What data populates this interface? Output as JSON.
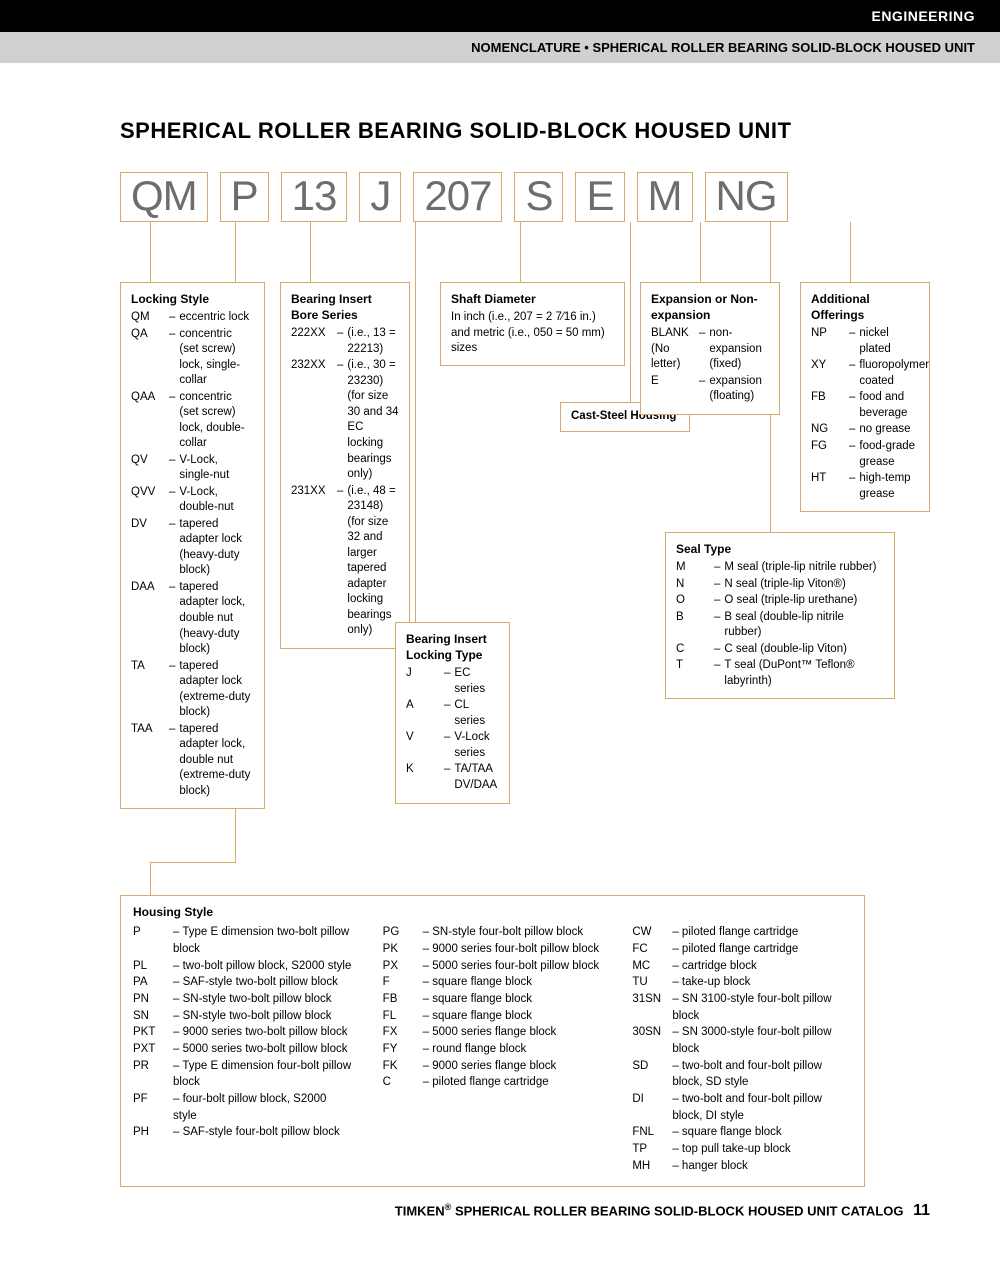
{
  "header": {
    "black": "ENGINEERING",
    "gray": "NOMENCLATURE • SPHERICAL ROLLER BEARING SOLID-BLOCK HOUSED UNIT"
  },
  "title": "SPHERICAL ROLLER BEARING SOLID-BLOCK HOUSED UNIT",
  "codes": [
    "QM",
    "P",
    "13",
    "J",
    "207",
    "S",
    "E",
    "M",
    "NG"
  ],
  "lockingStyle": {
    "title": "Locking Style",
    "items": [
      {
        "c": "QM",
        "d": "eccentric lock"
      },
      {
        "c": "QA",
        "d": "concentric (set screw) lock, single-collar"
      },
      {
        "c": "QAA",
        "d": "concentric (set screw) lock, double-collar"
      },
      {
        "c": "QV",
        "d": "V-Lock, single-nut"
      },
      {
        "c": "QVV",
        "d": "V-Lock, double-nut"
      },
      {
        "c": "DV",
        "d": "tapered adapter lock (heavy-duty block)"
      },
      {
        "c": "DAA",
        "d": "tapered adapter lock, double nut (heavy-duty block)"
      },
      {
        "c": "TA",
        "d": "tapered adapter lock (extreme-duty block)"
      },
      {
        "c": "TAA",
        "d": "tapered adapter lock, double nut (extreme-duty block)"
      }
    ]
  },
  "boreSeries": {
    "title": "Bearing Insert Bore Series",
    "items": [
      {
        "c": "222XX",
        "d": "(i.e., 13 = 22213)"
      },
      {
        "c": "232XX",
        "d": "(i.e., 30 = 23230) (for size 30 and 34 EC locking bearings only)"
      },
      {
        "c": "231XX",
        "d": "(i.e., 48 = 23148) (for size 32 and larger tapered adapter locking bearings only)"
      }
    ]
  },
  "lockingType": {
    "title": "Bearing Insert Locking Type",
    "items": [
      {
        "c": "J",
        "d": "EC series"
      },
      {
        "c": "A",
        "d": "CL series"
      },
      {
        "c": "V",
        "d": "V-Lock series"
      },
      {
        "c": "K",
        "d": "TA/TAA DV/DAA"
      }
    ]
  },
  "shaftDia": {
    "title": "Shaft Diameter",
    "text": "In inch (i.e., 207 = 2 7⁄16 in.) and metric (i.e., 050 = 50 mm) sizes"
  },
  "castSteel": "Cast-Steel Housing",
  "expansion": {
    "title": "Expansion or Non-expansion",
    "items": [
      {
        "c": "BLANK (No letter)",
        "d": "non-expansion (fixed)"
      },
      {
        "c": "E",
        "d": "expansion (floating)"
      }
    ]
  },
  "sealType": {
    "title": "Seal Type",
    "items": [
      {
        "c": "M",
        "d": "M seal (triple-lip nitrile rubber)"
      },
      {
        "c": "N",
        "d": "N seal (triple-lip Viton®)"
      },
      {
        "c": "O",
        "d": "O seal (triple-lip urethane)"
      },
      {
        "c": "B",
        "d": "B seal (double-lip nitrile rubber)"
      },
      {
        "c": "C",
        "d": "C seal (double-lip Viton)"
      },
      {
        "c": "T",
        "d": "T seal (DuPont™ Teflon® labyrinth)"
      }
    ]
  },
  "additional": {
    "title": "Additional Offerings",
    "items": [
      {
        "c": "NP",
        "d": "nickel plated"
      },
      {
        "c": "XY",
        "d": "fluoropolymer coated"
      },
      {
        "c": "FB",
        "d": "food and beverage"
      },
      {
        "c": "NG",
        "d": "no grease"
      },
      {
        "c": "FG",
        "d": "food-grade grease"
      },
      {
        "c": "HT",
        "d": "high-temp grease"
      }
    ]
  },
  "housing": {
    "title": "Housing Style",
    "col1": [
      {
        "c": "P",
        "d": "Type E dimension two-bolt pillow block"
      },
      {
        "c": "PL",
        "d": "two-bolt pillow block, S2000 style"
      },
      {
        "c": "PA",
        "d": "SAF-style two-bolt pillow block"
      },
      {
        "c": "PN",
        "d": "SN-style two-bolt pillow block"
      },
      {
        "c": "SN",
        "d": "SN-style two-bolt pillow block"
      },
      {
        "c": "PKT",
        "d": "9000 series two-bolt pillow block"
      },
      {
        "c": "PXT",
        "d": "5000 series two-bolt pillow block"
      },
      {
        "c": "PR",
        "d": "Type E dimension four-bolt pillow block"
      },
      {
        "c": "PF",
        "d": "four-bolt pillow block, S2000 style"
      },
      {
        "c": "PH",
        "d": "SAF-style four-bolt pillow block"
      }
    ],
    "col2": [
      {
        "c": "PG",
        "d": "SN-style four-bolt pillow block"
      },
      {
        "c": "PK",
        "d": "9000 series four-bolt pillow block"
      },
      {
        "c": "PX",
        "d": "5000 series four-bolt pillow block"
      },
      {
        "c": "F",
        "d": "square flange block"
      },
      {
        "c": "FB",
        "d": "square flange block"
      },
      {
        "c": "FL",
        "d": "square flange block"
      },
      {
        "c": "FX",
        "d": "5000 series flange block"
      },
      {
        "c": "FY",
        "d": "round flange block"
      },
      {
        "c": "FK",
        "d": "9000 series flange block"
      },
      {
        "c": "C",
        "d": "piloted flange cartridge"
      }
    ],
    "col3": [
      {
        "c": "CW",
        "d": "piloted flange cartridge"
      },
      {
        "c": "FC",
        "d": "piloted flange cartridge"
      },
      {
        "c": "MC",
        "d": "cartridge block"
      },
      {
        "c": "TU",
        "d": "take-up block"
      },
      {
        "c": "31SN",
        "d": "SN 3100-style four-bolt pillow block"
      },
      {
        "c": "30SN",
        "d": "SN 3000-style four-bolt pillow block"
      },
      {
        "c": "SD",
        "d": "two-bolt and four-bolt pillow block, SD style"
      },
      {
        "c": "DI",
        "d": "two-bolt and four-bolt pillow block, DI style"
      },
      {
        "c": "FNL",
        "d": "square flange block"
      },
      {
        "c": "TP",
        "d": "top pull take-up block"
      },
      {
        "c": "MH",
        "d": "hanger block"
      }
    ]
  },
  "footer": {
    "brand": "TIMKEN",
    "text": "SPHERICAL ROLLER BEARING SOLID-BLOCK HOUSED UNIT CATALOG",
    "page": "11"
  },
  "colors": {
    "boxBorder": "#d9a86c",
    "codeText": "#6d6d6d"
  }
}
